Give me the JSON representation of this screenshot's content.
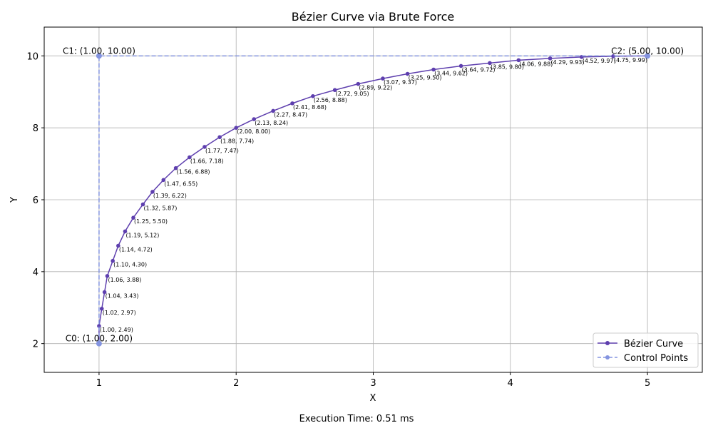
{
  "footer": {
    "prefix": "Execution Time: ",
    "value": "0.51 ms"
  },
  "colors": {
    "curve": "#5e3fae",
    "control": "#8494e0",
    "grid": "#b0b0b0",
    "axis": "#000000"
  },
  "chart_data": {
    "type": "line",
    "title": "Bézier Curve via Brute Force",
    "xlabel": "X",
    "ylabel": "Y",
    "xlim": [
      0.6,
      5.4
    ],
    "ylim": [
      1.2,
      10.8
    ],
    "xticks": [
      1,
      2,
      3,
      4,
      5
    ],
    "yticks": [
      2,
      4,
      6,
      8,
      10
    ],
    "grid": true,
    "legend": "bottom-right",
    "series": [
      {
        "name": "Bézier Curve",
        "style": "solid-line-with-dot-markers",
        "points": [
          {
            "x": 1.0,
            "y": 2.0,
            "label": ""
          },
          {
            "x": 1.0,
            "y": 2.49,
            "label": "(1.00, 2.49)"
          },
          {
            "x": 1.02,
            "y": 2.97,
            "label": "(1.02, 2.97)"
          },
          {
            "x": 1.04,
            "y": 3.43,
            "label": "(1.04, 3.43)"
          },
          {
            "x": 1.06,
            "y": 3.88,
            "label": "(1.06, 3.88)"
          },
          {
            "x": 1.1,
            "y": 4.3,
            "label": "(1.10, 4.30)"
          },
          {
            "x": 1.14,
            "y": 4.72,
            "label": "(1.14, 4.72)"
          },
          {
            "x": 1.19,
            "y": 5.12,
            "label": "(1.19, 5.12)"
          },
          {
            "x": 1.25,
            "y": 5.5,
            "label": "(1.25, 5.50)"
          },
          {
            "x": 1.32,
            "y": 5.87,
            "label": "(1.32, 5.87)"
          },
          {
            "x": 1.39,
            "y": 6.22,
            "label": "(1.39, 6.22)"
          },
          {
            "x": 1.47,
            "y": 6.55,
            "label": "(1.47, 6.55)"
          },
          {
            "x": 1.56,
            "y": 6.88,
            "label": "(1.56, 6.88)"
          },
          {
            "x": 1.66,
            "y": 7.18,
            "label": "(1.66, 7.18)"
          },
          {
            "x": 1.77,
            "y": 7.47,
            "label": "(1.77, 7.47)"
          },
          {
            "x": 1.88,
            "y": 7.74,
            "label": "(1.88, 7.74)"
          },
          {
            "x": 2.0,
            "y": 8.0,
            "label": "(2.00, 8.00)"
          },
          {
            "x": 2.13,
            "y": 8.24,
            "label": "(2.13, 8.24)"
          },
          {
            "x": 2.27,
            "y": 8.47,
            "label": "(2.27, 8.47)"
          },
          {
            "x": 2.41,
            "y": 8.68,
            "label": "(2.41, 8.68)"
          },
          {
            "x": 2.56,
            "y": 8.88,
            "label": "(2.56, 8.88)"
          },
          {
            "x": 2.72,
            "y": 9.05,
            "label": "(2.72, 9.05)"
          },
          {
            "x": 2.89,
            "y": 9.22,
            "label": "(2.89, 9.22)"
          },
          {
            "x": 3.07,
            "y": 9.37,
            "label": "(3.07, 9.37)"
          },
          {
            "x": 3.25,
            "y": 9.5,
            "label": "(3.25, 9.50)"
          },
          {
            "x": 3.44,
            "y": 9.62,
            "label": "(3.44, 9.62)"
          },
          {
            "x": 3.64,
            "y": 9.72,
            "label": "(3.64, 9.72)"
          },
          {
            "x": 3.85,
            "y": 9.8,
            "label": "(3.85, 9.80)"
          },
          {
            "x": 4.06,
            "y": 9.88,
            "label": "(4.06, 9.88)"
          },
          {
            "x": 4.29,
            "y": 9.93,
            "label": "(4.29, 9.93)"
          },
          {
            "x": 4.52,
            "y": 9.97,
            "label": "(4.52, 9.97)"
          },
          {
            "x": 4.75,
            "y": 9.99,
            "label": "(4.75, 9.99)"
          },
          {
            "x": 5.0,
            "y": 10.0,
            "label": ""
          }
        ]
      },
      {
        "name": "Control Points",
        "style": "dashed-line-with-dot-markers",
        "points": [
          {
            "x": 1.0,
            "y": 2.0,
            "label": "C0: (1.00, 2.00)"
          },
          {
            "x": 1.0,
            "y": 10.0,
            "label": "C1: (1.00, 10.00)"
          },
          {
            "x": 5.0,
            "y": 10.0,
            "label": "C2: (5.00, 10.00)"
          }
        ]
      }
    ]
  }
}
